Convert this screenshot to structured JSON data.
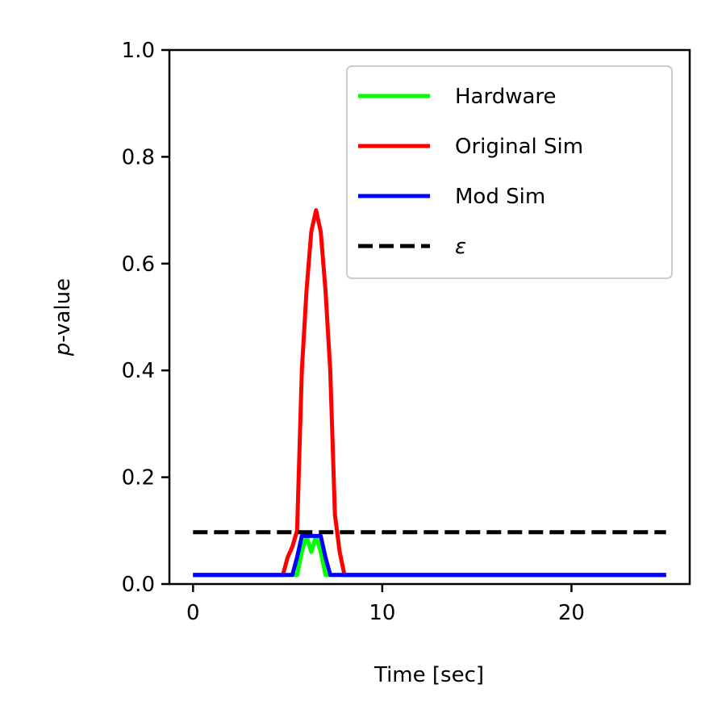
{
  "chart_data": {
    "type": "line",
    "xlabel": "Time [sec]",
    "ylabel_italic": "p",
    "ylabel_rest": "-value",
    "xlim": [
      -1.25,
      26.25
    ],
    "ylim": [
      0.0,
      1.0
    ],
    "xticks": [
      0,
      10,
      20
    ],
    "xtick_labels": [
      "0",
      "10",
      "20"
    ],
    "yticks": [
      0.0,
      0.2,
      0.4,
      0.6,
      0.8,
      1.0
    ],
    "ytick_labels": [
      "0.0",
      "0.2",
      "0.4",
      "0.6",
      "0.8",
      "1.0"
    ],
    "grid": false,
    "legend_placement": "top-right",
    "series": [
      {
        "name": "Hardware",
        "color": "#00ff00",
        "style": "solid",
        "x": [
          0,
          5.5,
          5.75,
          6.0,
          6.25,
          6.5,
          6.75,
          7.0,
          25
        ],
        "y": [
          0.017,
          0.017,
          0.06,
          0.09,
          0.06,
          0.09,
          0.06,
          0.017,
          0.017
        ]
      },
      {
        "name": "Original Sim",
        "color": "#ff0000",
        "style": "solid",
        "x": [
          0,
          4.75,
          5.0,
          5.25,
          5.5,
          5.75,
          6.0,
          6.25,
          6.5,
          6.75,
          7.0,
          7.25,
          7.5,
          7.75,
          8.0,
          25
        ],
        "y": [
          0.017,
          0.017,
          0.05,
          0.07,
          0.1,
          0.4,
          0.55,
          0.66,
          0.7,
          0.66,
          0.55,
          0.4,
          0.13,
          0.06,
          0.017,
          0.017
        ]
      },
      {
        "name": "Mod Sim",
        "color": "#0000ff",
        "style": "solid",
        "x": [
          0,
          5.25,
          5.5,
          5.75,
          6.0,
          6.25,
          6.5,
          6.75,
          7.0,
          7.25,
          25
        ],
        "y": [
          0.017,
          0.017,
          0.05,
          0.09,
          0.09,
          0.09,
          0.09,
          0.09,
          0.05,
          0.017,
          0.017
        ]
      },
      {
        "name": "ε",
        "color": "#000000",
        "style": "dashed",
        "x": [
          0,
          25
        ],
        "y": [
          0.097,
          0.097
        ]
      }
    ]
  }
}
